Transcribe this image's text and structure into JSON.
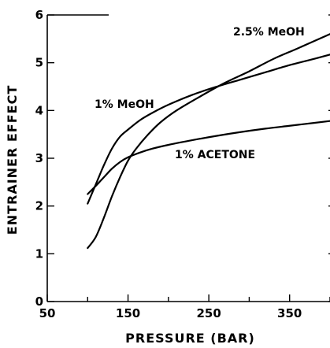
{
  "chart_data": {
    "type": "line",
    "xlabel": "PRESSURE (BAR)",
    "ylabel": "ENTRAINER EFFECT",
    "xlim": [
      50,
      400
    ],
    "ylim": [
      0,
      6
    ],
    "x_ticks": [
      "50",
      "150",
      "250",
      "350"
    ],
    "y_ticks": [
      "0",
      "1",
      "2",
      "3",
      "4",
      "5",
      "6"
    ],
    "grid": false,
    "legend": "none (series labelled directly on curves)",
    "series": [
      {
        "name": "1% MeOH",
        "x": [
          100,
          110,
          120,
          130,
          140,
          150,
          165,
          180,
          200,
          230,
          260,
          290,
          320,
          350,
          380,
          400
        ],
        "y": [
          2.05,
          2.45,
          2.85,
          3.2,
          3.45,
          3.6,
          3.8,
          3.95,
          4.12,
          4.33,
          4.5,
          4.65,
          4.8,
          4.95,
          5.08,
          5.17
        ]
      },
      {
        "name": "2.5% MeOH",
        "x": [
          100,
          110,
          120,
          130,
          140,
          150,
          160,
          175,
          190,
          210,
          240,
          270,
          300,
          330,
          360,
          400
        ],
        "y": [
          1.12,
          1.35,
          1.75,
          2.2,
          2.6,
          2.95,
          3.2,
          3.5,
          3.75,
          4.0,
          4.3,
          4.58,
          4.82,
          5.08,
          5.3,
          5.6
        ]
      },
      {
        "name": "1% ACETONE",
        "x": [
          100,
          110,
          120,
          130,
          140,
          150,
          165,
          180,
          200,
          230,
          260,
          290,
          320,
          350,
          380,
          400
        ],
        "y": [
          2.25,
          2.42,
          2.6,
          2.78,
          2.92,
          3.02,
          3.12,
          3.2,
          3.28,
          3.38,
          3.47,
          3.55,
          3.62,
          3.68,
          3.74,
          3.78
        ]
      }
    ]
  }
}
